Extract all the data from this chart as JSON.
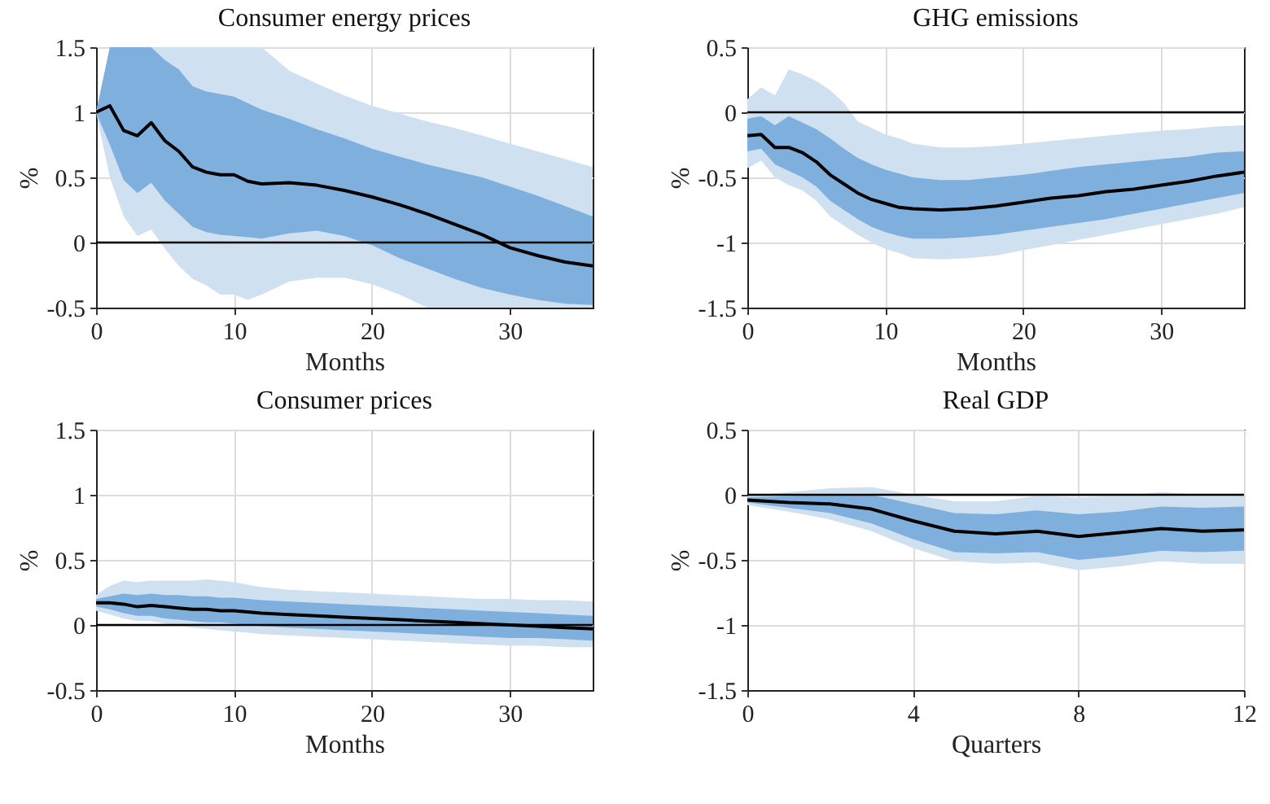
{
  "chart_data": [
    {
      "type": "line",
      "title": "Consumer energy prices",
      "xlabel": "Months",
      "ylabel": "%",
      "grid": true,
      "x": [
        0,
        1,
        2,
        3,
        4,
        5,
        6,
        7,
        8,
        9,
        10,
        11,
        12,
        14,
        16,
        18,
        20,
        22,
        24,
        26,
        28,
        30,
        32,
        34,
        36
      ],
      "xlim": [
        0,
        36
      ],
      "xticks": [
        0,
        10,
        20,
        30
      ],
      "ylim": [
        -0.5,
        1.5
      ],
      "yticks": [
        -0.5,
        0,
        0.5,
        1,
        1.5
      ],
      "ref_lines": [
        {
          "axis": "y",
          "value": 0,
          "color": "#000000"
        }
      ],
      "series": [
        {
          "type": "area",
          "color": "#cfe0f1",
          "values": [
            null,
            null,
            null,
            null,
            null,
            null,
            null,
            null,
            null,
            null,
            null,
            null,
            null,
            null,
            null,
            null,
            null,
            null,
            null,
            null,
            null,
            null,
            null,
            null,
            null
          ],
          "lower": [
            1.0,
            0.5,
            0.2,
            0.05,
            0.1,
            -0.05,
            -0.18,
            -0.28,
            -0.33,
            -0.4,
            -0.4,
            -0.44,
            -0.4,
            -0.3,
            -0.27,
            -0.27,
            -0.32,
            -0.4,
            -0.5,
            -0.5,
            -0.5,
            -0.5,
            -0.5,
            -0.5,
            -0.5
          ],
          "upper": [
            1.0,
            1.5,
            1.5,
            1.5,
            1.5,
            1.5,
            1.5,
            1.5,
            1.5,
            1.5,
            1.5,
            1.5,
            1.5,
            1.32,
            1.22,
            1.13,
            1.05,
            0.99,
            0.93,
            0.88,
            0.82,
            0.76,
            0.7,
            0.64,
            0.58
          ]
        },
        {
          "type": "area",
          "color": "#7fb0dd",
          "values": [
            null,
            null,
            null,
            null,
            null,
            null,
            null,
            null,
            null,
            null,
            null,
            null,
            null,
            null,
            null,
            null,
            null,
            null,
            null,
            null,
            null,
            null,
            null,
            null,
            null
          ],
          "lower": [
            1.0,
            0.75,
            0.48,
            0.38,
            0.46,
            0.32,
            0.22,
            0.12,
            0.08,
            0.06,
            0.05,
            0.04,
            0.03,
            0.07,
            0.09,
            0.05,
            -0.02,
            -0.12,
            -0.2,
            -0.28,
            -0.35,
            -0.4,
            -0.44,
            -0.47,
            -0.48
          ],
          "upper": [
            1.0,
            1.5,
            1.5,
            1.5,
            1.5,
            1.4,
            1.33,
            1.2,
            1.16,
            1.14,
            1.12,
            1.07,
            1.02,
            0.95,
            0.87,
            0.8,
            0.72,
            0.66,
            0.6,
            0.55,
            0.5,
            0.43,
            0.36,
            0.28,
            0.2
          ]
        },
        {
          "type": "line",
          "color": "#000000",
          "values": [
            1.0,
            1.05,
            0.86,
            0.82,
            0.92,
            0.78,
            0.7,
            0.58,
            0.54,
            0.52,
            0.52,
            0.47,
            0.45,
            0.46,
            0.44,
            0.4,
            0.35,
            0.29,
            0.22,
            0.14,
            0.06,
            -0.04,
            -0.1,
            -0.15,
            -0.18
          ]
        }
      ]
    },
    {
      "type": "line",
      "title": "GHG emissions",
      "xlabel": "Months",
      "ylabel": "%",
      "grid": true,
      "x": [
        0,
        1,
        2,
        3,
        4,
        5,
        6,
        7,
        8,
        9,
        10,
        11,
        12,
        14,
        16,
        18,
        20,
        22,
        24,
        26,
        28,
        30,
        32,
        34,
        36
      ],
      "xlim": [
        0,
        36
      ],
      "xticks": [
        0,
        10,
        20,
        30
      ],
      "ylim": [
        -1.5,
        0.5
      ],
      "yticks": [
        -1.5,
        -1,
        -0.5,
        0,
        0.5
      ],
      "ref_lines": [
        {
          "axis": "y",
          "value": 0,
          "color": "#000000"
        }
      ],
      "series": [
        {
          "type": "area",
          "color": "#cfe0f1",
          "values": [
            null,
            null,
            null,
            null,
            null,
            null,
            null,
            null,
            null,
            null,
            null,
            null,
            null,
            null,
            null,
            null,
            null,
            null,
            null,
            null,
            null,
            null,
            null,
            null,
            null
          ],
          "lower": [
            -0.43,
            -0.37,
            -0.5,
            -0.56,
            -0.6,
            -0.68,
            -0.8,
            -0.87,
            -0.94,
            -1.0,
            -1.05,
            -1.08,
            -1.12,
            -1.13,
            -1.12,
            -1.1,
            -1.06,
            -1.02,
            -0.98,
            -0.94,
            -0.9,
            -0.86,
            -0.82,
            -0.78,
            -0.73
          ],
          "upper": [
            0.1,
            0.19,
            0.13,
            0.33,
            0.29,
            0.24,
            0.17,
            0.07,
            -0.07,
            -0.12,
            -0.17,
            -0.2,
            -0.24,
            -0.27,
            -0.27,
            -0.26,
            -0.24,
            -0.22,
            -0.2,
            -0.18,
            -0.16,
            -0.14,
            -0.13,
            -0.11,
            -0.1
          ]
        },
        {
          "type": "area",
          "color": "#7fb0dd",
          "values": [
            null,
            null,
            null,
            null,
            null,
            null,
            null,
            null,
            null,
            null,
            null,
            null,
            null,
            null,
            null,
            null,
            null,
            null,
            null,
            null,
            null,
            null,
            null,
            null,
            null
          ],
          "lower": [
            -0.3,
            -0.28,
            -0.4,
            -0.45,
            -0.5,
            -0.57,
            -0.68,
            -0.75,
            -0.82,
            -0.88,
            -0.92,
            -0.95,
            -0.97,
            -0.97,
            -0.96,
            -0.94,
            -0.91,
            -0.88,
            -0.85,
            -0.82,
            -0.78,
            -0.74,
            -0.7,
            -0.66,
            -0.62
          ],
          "upper": [
            -0.05,
            -0.03,
            -0.1,
            -0.03,
            -0.08,
            -0.13,
            -0.2,
            -0.28,
            -0.35,
            -0.4,
            -0.44,
            -0.47,
            -0.5,
            -0.52,
            -0.52,
            -0.5,
            -0.48,
            -0.45,
            -0.42,
            -0.4,
            -0.38,
            -0.36,
            -0.34,
            -0.31,
            -0.3
          ]
        },
        {
          "type": "line",
          "color": "#000000",
          "values": [
            -0.18,
            -0.17,
            -0.27,
            -0.27,
            -0.31,
            -0.38,
            -0.48,
            -0.55,
            -0.62,
            -0.67,
            -0.7,
            -0.73,
            -0.74,
            -0.75,
            -0.74,
            -0.72,
            -0.69,
            -0.66,
            -0.64,
            -0.61,
            -0.59,
            -0.56,
            -0.53,
            -0.49,
            -0.46
          ]
        }
      ]
    },
    {
      "type": "line",
      "title": "Consumer prices",
      "xlabel": "Months",
      "ylabel": "%",
      "grid": true,
      "x": [
        0,
        1,
        2,
        3,
        4,
        5,
        6,
        7,
        8,
        9,
        10,
        11,
        12,
        14,
        16,
        18,
        20,
        22,
        24,
        26,
        28,
        30,
        32,
        34,
        36
      ],
      "xlim": [
        0,
        36
      ],
      "xticks": [
        0,
        10,
        20,
        30
      ],
      "ylim": [
        -0.5,
        1.5
      ],
      "yticks": [
        -0.5,
        0,
        0.5,
        1,
        1.5
      ],
      "ref_lines": [
        {
          "axis": "y",
          "value": 0,
          "color": "#000000"
        }
      ],
      "series": [
        {
          "type": "area",
          "color": "#cfe0f1",
          "values": [
            null,
            null,
            null,
            null,
            null,
            null,
            null,
            null,
            null,
            null,
            null,
            null,
            null,
            null,
            null,
            null,
            null,
            null,
            null,
            null,
            null,
            null,
            null,
            null,
            null
          ],
          "lower": [
            0.11,
            0.08,
            0.05,
            0.03,
            0.03,
            0.01,
            -0.01,
            -0.02,
            -0.03,
            -0.04,
            -0.05,
            -0.06,
            -0.07,
            -0.08,
            -0.09,
            -0.1,
            -0.11,
            -0.12,
            -0.13,
            -0.14,
            -0.15,
            -0.16,
            -0.16,
            -0.17,
            -0.17
          ],
          "upper": [
            0.23,
            0.3,
            0.34,
            0.33,
            0.34,
            0.34,
            0.34,
            0.34,
            0.35,
            0.34,
            0.33,
            0.31,
            0.29,
            0.27,
            0.26,
            0.25,
            0.24,
            0.23,
            0.22,
            0.21,
            0.2,
            0.2,
            0.19,
            0.19,
            0.18
          ]
        },
        {
          "type": "area",
          "color": "#7fb0dd",
          "values": [
            null,
            null,
            null,
            null,
            null,
            null,
            null,
            null,
            null,
            null,
            null,
            null,
            null,
            null,
            null,
            null,
            null,
            null,
            null,
            null,
            null,
            null,
            null,
            null,
            null
          ],
          "lower": [
            0.14,
            0.12,
            0.09,
            0.07,
            0.07,
            0.05,
            0.04,
            0.03,
            0.02,
            0.02,
            0.01,
            0.0,
            -0.01,
            -0.02,
            -0.03,
            -0.04,
            -0.05,
            -0.06,
            -0.07,
            -0.08,
            -0.09,
            -0.1,
            -0.1,
            -0.11,
            -0.12
          ],
          "upper": [
            0.2,
            0.22,
            0.24,
            0.23,
            0.24,
            0.23,
            0.23,
            0.22,
            0.22,
            0.21,
            0.21,
            0.2,
            0.19,
            0.18,
            0.17,
            0.16,
            0.15,
            0.14,
            0.13,
            0.12,
            0.11,
            0.1,
            0.09,
            0.08,
            0.07
          ]
        },
        {
          "type": "line",
          "color": "#000000",
          "values": [
            0.17,
            0.17,
            0.16,
            0.14,
            0.15,
            0.14,
            0.13,
            0.12,
            0.12,
            0.11,
            0.11,
            0.1,
            0.09,
            0.08,
            0.07,
            0.06,
            0.05,
            0.04,
            0.03,
            0.02,
            0.01,
            0.0,
            -0.01,
            -0.02,
            -0.03
          ]
        }
      ]
    },
    {
      "type": "line",
      "title": "Real GDP",
      "xlabel": "Quarters",
      "ylabel": "%",
      "grid": true,
      "x": [
        0,
        1,
        2,
        3,
        4,
        5,
        6,
        7,
        8,
        9,
        10,
        11,
        12
      ],
      "xlim": [
        0,
        12
      ],
      "xticks": [
        0,
        4,
        8,
        12
      ],
      "ylim": [
        -1.5,
        0.5
      ],
      "yticks": [
        -1.5,
        -1,
        -0.5,
        0,
        0.5
      ],
      "ref_lines": [
        {
          "axis": "y",
          "value": 0,
          "color": "#000000"
        }
      ],
      "series": [
        {
          "type": "area",
          "color": "#cfe0f1",
          "values": [
            null,
            null,
            null,
            null,
            null,
            null,
            null,
            null,
            null,
            null,
            null,
            null,
            null
          ],
          "lower": [
            -0.08,
            -0.13,
            -0.19,
            -0.28,
            -0.41,
            -0.51,
            -0.53,
            -0.52,
            -0.58,
            -0.55,
            -0.51,
            -0.53,
            -0.53
          ],
          "upper": [
            -0.01,
            0.02,
            0.05,
            0.06,
            0.0,
            -0.05,
            -0.05,
            -0.01,
            -0.02,
            -0.01,
            0.02,
            0.0,
            0.01
          ]
        },
        {
          "type": "area",
          "color": "#7fb0dd",
          "values": [
            null,
            null,
            null,
            null,
            null,
            null,
            null,
            null,
            null,
            null,
            null,
            null,
            null
          ],
          "lower": [
            -0.06,
            -0.1,
            -0.14,
            -0.22,
            -0.34,
            -0.44,
            -0.45,
            -0.44,
            -0.5,
            -0.47,
            -0.43,
            -0.44,
            -0.43
          ],
          "upper": [
            -0.02,
            -0.01,
            0.0,
            0.0,
            -0.07,
            -0.14,
            -0.15,
            -0.12,
            -0.15,
            -0.13,
            -0.09,
            -0.1,
            -0.09
          ]
        },
        {
          "type": "line",
          "color": "#000000",
          "values": [
            -0.04,
            -0.06,
            -0.07,
            -0.11,
            -0.2,
            -0.28,
            -0.3,
            -0.28,
            -0.32,
            -0.29,
            -0.26,
            -0.28,
            -0.27
          ]
        }
      ]
    }
  ]
}
